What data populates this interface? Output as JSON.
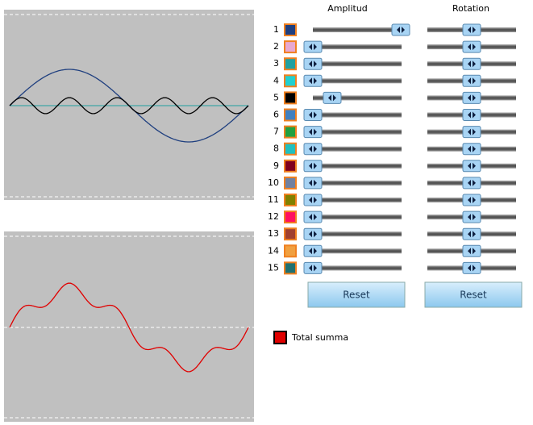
{
  "header": {
    "amplitude_label": "Amplitud",
    "rotation_label": "Rotation"
  },
  "rows": [
    {
      "label": "1",
      "color": "#1f3f7f",
      "amplitude": 1,
      "rotation": 0.5
    },
    {
      "label": "2",
      "color": "#e8a8d0",
      "amplitude": 0,
      "rotation": 0.5
    },
    {
      "label": "3",
      "color": "#20a0a0",
      "amplitude": 0,
      "rotation": 0.5
    },
    {
      "label": "4",
      "color": "#20d0d0",
      "amplitude": 0,
      "rotation": 0.5
    },
    {
      "label": "5",
      "color": "#000000",
      "amplitude": 0.22,
      "rotation": 0.5
    },
    {
      "label": "6",
      "color": "#4080c0",
      "amplitude": 0,
      "rotation": 0.5
    },
    {
      "label": "7",
      "color": "#20a040",
      "amplitude": 0,
      "rotation": 0.5
    },
    {
      "label": "8",
      "color": "#20c0c0",
      "amplitude": 0,
      "rotation": 0.5
    },
    {
      "label": "9",
      "color": "#800020",
      "amplitude": 0,
      "rotation": 0.5
    },
    {
      "label": "10",
      "color": "#7080a0",
      "amplitude": 0,
      "rotation": 0.5
    },
    {
      "label": "11",
      "color": "#808000",
      "amplitude": 0,
      "rotation": 0.5
    },
    {
      "label": "12",
      "color": "#ff1060",
      "amplitude": 0,
      "rotation": 0.5
    },
    {
      "label": "13",
      "color": "#a04030",
      "amplitude": 0,
      "rotation": 0.5
    },
    {
      "label": "14",
      "color": "#f0a040",
      "amplitude": 0,
      "rotation": 0.5
    },
    {
      "label": "15",
      "color": "#207070",
      "amplitude": 0,
      "rotation": 0.5
    }
  ],
  "reset_buttons": [
    "Reset",
    "Reset"
  ],
  "legend": {
    "label": "Total summa",
    "color": "#e00000"
  }
}
